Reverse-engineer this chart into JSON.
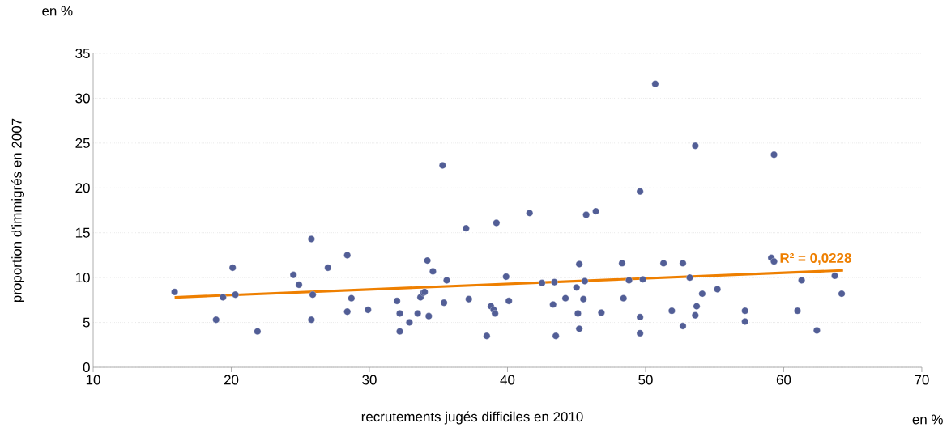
{
  "chart_data": {
    "type": "scatter",
    "xlabel": "recrutements jugés difficiles en 2010",
    "ylabel": "proportion d'immigrés en 2007",
    "annotations": [
      "en %",
      "en %",
      "R² = 0,0228"
    ],
    "series": [
      {
        "color": "#525e96",
        "x": [
          15.9,
          18.9,
          19.4,
          20.1,
          20.3,
          21.9,
          24.5,
          24.9,
          25.8,
          25.8,
          25.9,
          27.0,
          28.4,
          28.4,
          28.7,
          29.9,
          32.0,
          32.2,
          32.2,
          32.9,
          33.5,
          33.7,
          33.9,
          34.0,
          34.2,
          34.6,
          34.3,
          35.3,
          35.6,
          35.4,
          37.0,
          37.2,
          38.5,
          38.8,
          39.0,
          39.1,
          39.2,
          39.9,
          40.1,
          41.6,
          42.5,
          43.4,
          43.3,
          43.5,
          44.2,
          45.0,
          45.2,
          45.1,
          45.2,
          45.5,
          45.6,
          45.7,
          46.4,
          46.8,
          48.3,
          48.4,
          48.8,
          49.6,
          49.6,
          49.6,
          49.8,
          50.7,
          51.3,
          51.9,
          52.7,
          52.7,
          53.2,
          53.6,
          53.6,
          53.7,
          54.1,
          55.2,
          57.2,
          57.2,
          59.1,
          59.3,
          59.3,
          61.3,
          61.0,
          62.4,
          63.7,
          64.2
        ],
        "values": [
          8.4,
          5.3,
          7.8,
          11.1,
          8.1,
          4.0,
          10.3,
          9.2,
          14.3,
          5.3,
          8.1,
          11.1,
          12.5,
          6.2,
          7.7,
          6.4,
          7.4,
          6.0,
          4.0,
          5.0,
          6.0,
          7.8,
          8.3,
          8.4,
          11.9,
          10.7,
          5.7,
          22.5,
          9.7,
          7.2,
          15.5,
          7.6,
          3.5,
          6.8,
          6.4,
          6.0,
          16.1,
          10.1,
          7.4,
          17.2,
          9.4,
          9.5,
          7.0,
          3.5,
          7.7,
          8.9,
          11.5,
          6.0,
          4.3,
          7.6,
          9.6,
          17.0,
          17.4,
          6.1,
          11.6,
          7.7,
          9.7,
          19.6,
          5.6,
          3.8,
          9.8,
          31.6,
          11.6,
          6.3,
          11.6,
          4.6,
          10.0,
          24.7,
          5.8,
          6.8,
          8.2,
          8.7,
          6.3,
          5.1,
          12.2,
          11.8,
          23.7,
          9.7,
          6.3,
          4.1,
          10.2,
          8.2
        ]
      },
      {
        "type": "line",
        "color": "#ee7f00",
        "x": [
          15.9,
          64.3
        ],
        "values": [
          7.8,
          10.8
        ]
      }
    ],
    "xlim": [
      10,
      70
    ],
    "ylim": [
      0,
      35
    ],
    "xticks": [
      10,
      20,
      30,
      40,
      50,
      60,
      70
    ],
    "yticks": [
      0,
      5,
      10,
      15,
      20,
      25,
      30,
      35
    ],
    "grid": "y"
  }
}
